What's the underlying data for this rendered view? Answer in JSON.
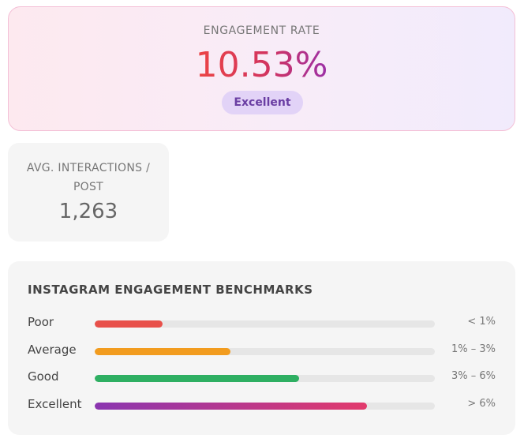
{
  "engagement": {
    "label": "ENGAGEMENT RATE",
    "value": "10.53%",
    "rating": "Excellent"
  },
  "interactions": {
    "label": "AVG. INTERACTIONS / POST",
    "value": "1,263"
  },
  "benchmarks": {
    "title": "INSTAGRAM ENGAGEMENT BENCHMARKS",
    "rows": [
      {
        "label": "Poor",
        "range": "< 1%",
        "fill": 20,
        "color": "#e8504a"
      },
      {
        "label": "Average",
        "range": "1% – 3%",
        "fill": 40,
        "color": "#f29c1f"
      },
      {
        "label": "Good",
        "range": "3% – 6%",
        "fill": 60,
        "color": "#2eaf62"
      },
      {
        "label": "Excellent",
        "range": "> 6%",
        "fill": 80,
        "color": [
          "#8a35b0",
          "#e23a6c"
        ]
      }
    ]
  }
}
